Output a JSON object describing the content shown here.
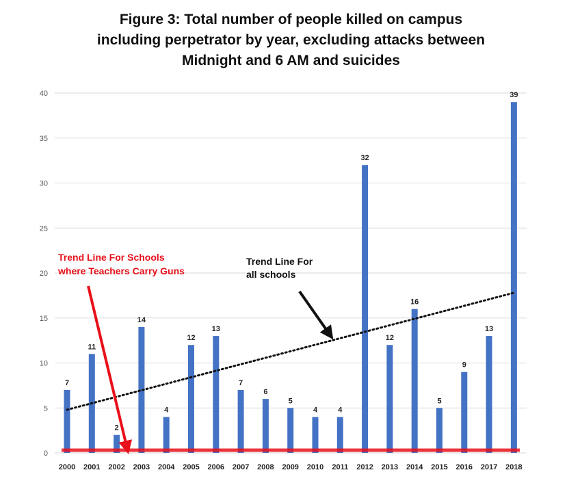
{
  "title_lines": [
    "Figure 3: Total number of people killed on campus",
    "including perpetrator by year, excluding attacks between",
    "Midnight and 6 AM and suicides"
  ],
  "colors": {
    "bar": "#4472C4",
    "red_trend": "#e8101a",
    "black_trend": "#111111",
    "grid": "#d9d9d9"
  },
  "chart_data": {
    "type": "bar",
    "categories": [
      "2000",
      "2001",
      "2002",
      "2003",
      "2004",
      "2005",
      "2006",
      "2007",
      "2008",
      "2009",
      "2010",
      "2011",
      "2012",
      "2013",
      "2014",
      "2015",
      "2016",
      "2017",
      "2018"
    ],
    "values": [
      7,
      11,
      2,
      14,
      4,
      12,
      13,
      7,
      6,
      5,
      4,
      4,
      32,
      12,
      16,
      5,
      9,
      13,
      39
    ],
    "ylim": [
      0,
      40
    ],
    "yticks": [
      0,
      5,
      10,
      15,
      20,
      25,
      30,
      35,
      40
    ],
    "grid": true,
    "data_labels": true,
    "trend_lines": [
      {
        "label": [
          "Trend Line For",
          "all schools"
        ],
        "style": "dotted",
        "color": "black",
        "start": {
          "x": "2000",
          "y": 4.8
        },
        "end": {
          "x": "2018",
          "y": 17.8
        }
      },
      {
        "label": [
          "Trend Line For Schools",
          "where Teachers Carry Guns"
        ],
        "style": "solid-thick",
        "color": "red",
        "start": {
          "x": "2000",
          "y": 0.3
        },
        "end": {
          "x": "2018",
          "y": 0.3
        }
      }
    ]
  }
}
